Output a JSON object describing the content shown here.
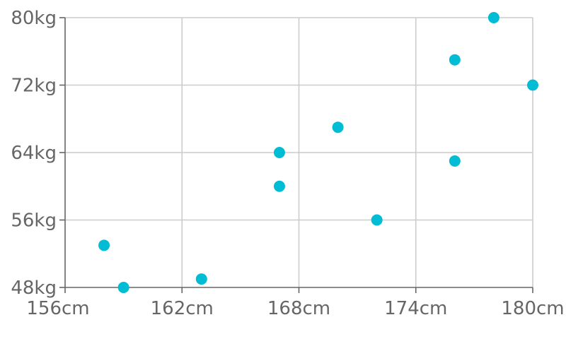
{
  "chart_data": {
    "type": "scatter",
    "title": "",
    "xlabel": "",
    "ylabel": "",
    "xlim": [
      156,
      180
    ],
    "ylim": [
      48,
      80
    ],
    "x_ticks": [
      {
        "value": 156,
        "label": "156cm"
      },
      {
        "value": 162,
        "label": "162cm"
      },
      {
        "value": 168,
        "label": "168cm"
      },
      {
        "value": 174,
        "label": "174cm"
      },
      {
        "value": 180,
        "label": "180cm"
      }
    ],
    "y_ticks": [
      {
        "value": 48,
        "label": "48kg"
      },
      {
        "value": 56,
        "label": "56kg"
      },
      {
        "value": 64,
        "label": "64kg"
      },
      {
        "value": 72,
        "label": "72kg"
      },
      {
        "value": 80,
        "label": "80kg"
      }
    ],
    "grid": true,
    "legend": "none",
    "point_color": "#00bcd4",
    "grid_color": "#cccccc",
    "axis_color": "#666666",
    "points": [
      {
        "x": 158,
        "y": 53
      },
      {
        "x": 159,
        "y": 48
      },
      {
        "x": 163,
        "y": 49
      },
      {
        "x": 167,
        "y": 60
      },
      {
        "x": 167,
        "y": 64
      },
      {
        "x": 170,
        "y": 67
      },
      {
        "x": 172,
        "y": 56
      },
      {
        "x": 176,
        "y": 63
      },
      {
        "x": 176,
        "y": 75
      },
      {
        "x": 178,
        "y": 80
      },
      {
        "x": 180,
        "y": 72
      }
    ]
  }
}
